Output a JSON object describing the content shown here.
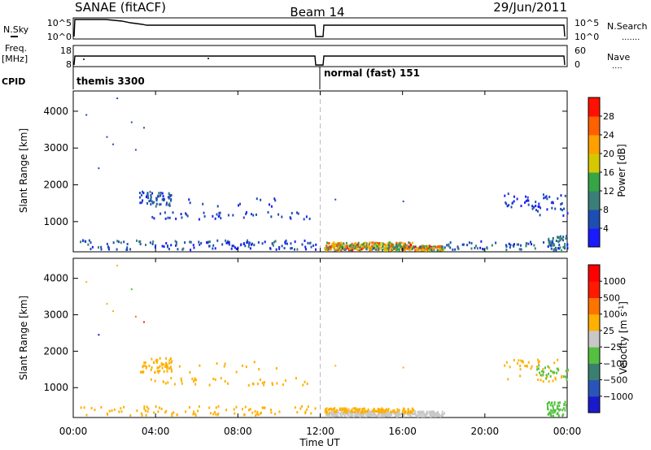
{
  "header": {
    "title": "SANAE (fitACF)",
    "beam": "Beam 14",
    "date": "29/Jun/2011"
  },
  "strip_panels": {
    "nsky": {
      "left_label": "N.Sky",
      "right_label": "N.Search",
      "left_ticks": [
        "10^5",
        "10^0"
      ],
      "right_ticks": [
        "10^5",
        "10^0"
      ]
    },
    "freq": {
      "left_label_1": "Freq.",
      "left_label_2": "[MHz]",
      "right_label": "Nave",
      "left_ticks": [
        "18",
        "8"
      ],
      "right_ticks": [
        "60",
        "0"
      ]
    },
    "cpid": {
      "label": "CPID",
      "modes": [
        {
          "text": "themis 3300",
          "start_hour": 0,
          "end_hour": 12
        },
        {
          "text": "normal (fast) 151",
          "start_hour": 12.1,
          "end_hour": 24
        }
      ]
    }
  },
  "chart_data": [
    {
      "type": "heatmap",
      "title": "",
      "xlabel": "",
      "ylabel": "Slant Range [km]",
      "xlim": [
        0,
        24
      ],
      "ylim": [
        180,
        4550
      ],
      "x_ticks": [
        "00:00",
        "04:00",
        "08:00",
        "12:00",
        "16:00",
        "20:00",
        "00:00"
      ],
      "y_ticks": [
        1000,
        2000,
        3000,
        4000
      ],
      "colorbar": {
        "label": "Power [dB]",
        "range": [
          0,
          32
        ],
        "tick_labels": [
          "4",
          "8",
          "12",
          "16",
          "20",
          "24",
          "28"
        ],
        "colors": [
          "#1a1aff",
          "#1e4db3",
          "#3b7f78",
          "#35a545",
          "#d6c800",
          "#ff9f00",
          "#ff6000",
          "#ff1000"
        ]
      },
      "clusters": [
        {
          "t": [
            3.2,
            4.8
          ],
          "r": [
            1400,
            1800
          ],
          "n": 60,
          "v": [
            3,
            9
          ]
        },
        {
          "t": [
            3.6,
            11.5
          ],
          "r": [
            1050,
            1250
          ],
          "n": 45,
          "v": [
            2,
            8
          ]
        },
        {
          "t": [
            5.0,
            10.0
          ],
          "r": [
            1400,
            1700
          ],
          "n": 12,
          "v": [
            2,
            7
          ]
        },
        {
          "t": [
            0.3,
            11.8
          ],
          "r": [
            220,
            480
          ],
          "n": 140,
          "v": [
            2,
            10
          ]
        },
        {
          "t": [
            12.2,
            18.0
          ],
          "r": [
            200,
            330
          ],
          "n": 320,
          "v": [
            6,
            29
          ]
        },
        {
          "t": [
            12.2,
            16.5
          ],
          "r": [
            300,
            420
          ],
          "n": 140,
          "v": [
            10,
            29
          ]
        },
        {
          "t": [
            18.0,
            24.0
          ],
          "r": [
            220,
            450
          ],
          "n": 60,
          "v": [
            2,
            10
          ]
        },
        {
          "t": [
            20.8,
            24.0
          ],
          "r": [
            1150,
            1750
          ],
          "n": 55,
          "v": [
            2,
            7
          ]
        },
        {
          "t": [
            23.0,
            24.0
          ],
          "r": [
            200,
            600
          ],
          "n": 50,
          "v": [
            3,
            14
          ]
        }
      ],
      "points": [
        {
          "t": 0.6,
          "r": 3900,
          "v": 4
        },
        {
          "t": 1.6,
          "r": 3300,
          "v": 4
        },
        {
          "t": 2.1,
          "r": 4350,
          "v": 4
        },
        {
          "t": 2.8,
          "r": 3700,
          "v": 4
        },
        {
          "t": 3.4,
          "r": 3550,
          "v": 4
        },
        {
          "t": 1.9,
          "r": 3100,
          "v": 4
        },
        {
          "t": 1.2,
          "r": 2450,
          "v": 4
        },
        {
          "t": 3.0,
          "r": 2950,
          "v": 4
        },
        {
          "t": 16.0,
          "r": 1550,
          "v": 4
        },
        {
          "t": 12.7,
          "r": 1600,
          "v": 4
        }
      ]
    },
    {
      "type": "heatmap",
      "title": "",
      "xlabel": "Time UT",
      "ylabel": "Slant Range [km]",
      "xlim": [
        0,
        24
      ],
      "ylim": [
        180,
        4550
      ],
      "x_ticks": [
        "00:00",
        "04:00",
        "08:00",
        "12:00",
        "16:00",
        "20:00",
        "00:00"
      ],
      "y_ticks": [
        1000,
        2000,
        3000,
        4000
      ],
      "colorbar": {
        "label": "Velocity [m s^-1]",
        "tick_labels": [
          "1000",
          "500",
          "100",
          "25",
          "−25",
          "−100",
          "−500",
          "−1000"
        ],
        "colors": [
          "#1a1acc",
          "#2a55b8",
          "#3a8070",
          "#55c040",
          "#c8c8c8",
          "#ffb000",
          "#ff7400",
          "#ff1a00",
          "#ff0000"
        ]
      },
      "clusters": [
        {
          "t": [
            3.2,
            4.8
          ],
          "r": [
            1400,
            1800
          ],
          "n": 60,
          "c": 5
        },
        {
          "t": [
            3.6,
            11.5
          ],
          "r": [
            1050,
            1250
          ],
          "n": 40,
          "c": 5
        },
        {
          "t": [
            5.0,
            10.0
          ],
          "r": [
            1400,
            1700
          ],
          "n": 12,
          "c": 5
        },
        {
          "t": [
            0.3,
            11.8
          ],
          "r": [
            220,
            480
          ],
          "n": 90,
          "c": 5
        },
        {
          "t": [
            12.2,
            18.0
          ],
          "r": [
            200,
            330
          ],
          "n": 300,
          "c": 4
        },
        {
          "t": [
            12.2,
            16.5
          ],
          "r": [
            300,
            420
          ],
          "n": 140,
          "c": 5
        },
        {
          "t": [
            20.8,
            24.0
          ],
          "r": [
            1150,
            1750
          ],
          "n": 45,
          "c": 5
        },
        {
          "t": [
            22.5,
            24.0
          ],
          "r": [
            1200,
            1600
          ],
          "n": 25,
          "c": 3
        },
        {
          "t": [
            23.0,
            24.0
          ],
          "r": [
            200,
            600
          ],
          "n": 50,
          "c": 3
        }
      ],
      "points": [
        {
          "t": 0.6,
          "r": 3900,
          "c": 5
        },
        {
          "t": 1.6,
          "r": 3300,
          "c": 5
        },
        {
          "t": 2.1,
          "r": 4350,
          "c": 5
        },
        {
          "t": 2.8,
          "r": 3700,
          "c": 3
        },
        {
          "t": 3.4,
          "r": 2800,
          "c": 7
        },
        {
          "t": 1.9,
          "r": 3100,
          "c": 5
        },
        {
          "t": 1.2,
          "r": 2450,
          "c": 0
        },
        {
          "t": 3.0,
          "r": 2950,
          "c": 6
        },
        {
          "t": 16.0,
          "r": 1550,
          "c": 5
        },
        {
          "t": 12.7,
          "r": 1600,
          "c": 5
        }
      ]
    }
  ]
}
